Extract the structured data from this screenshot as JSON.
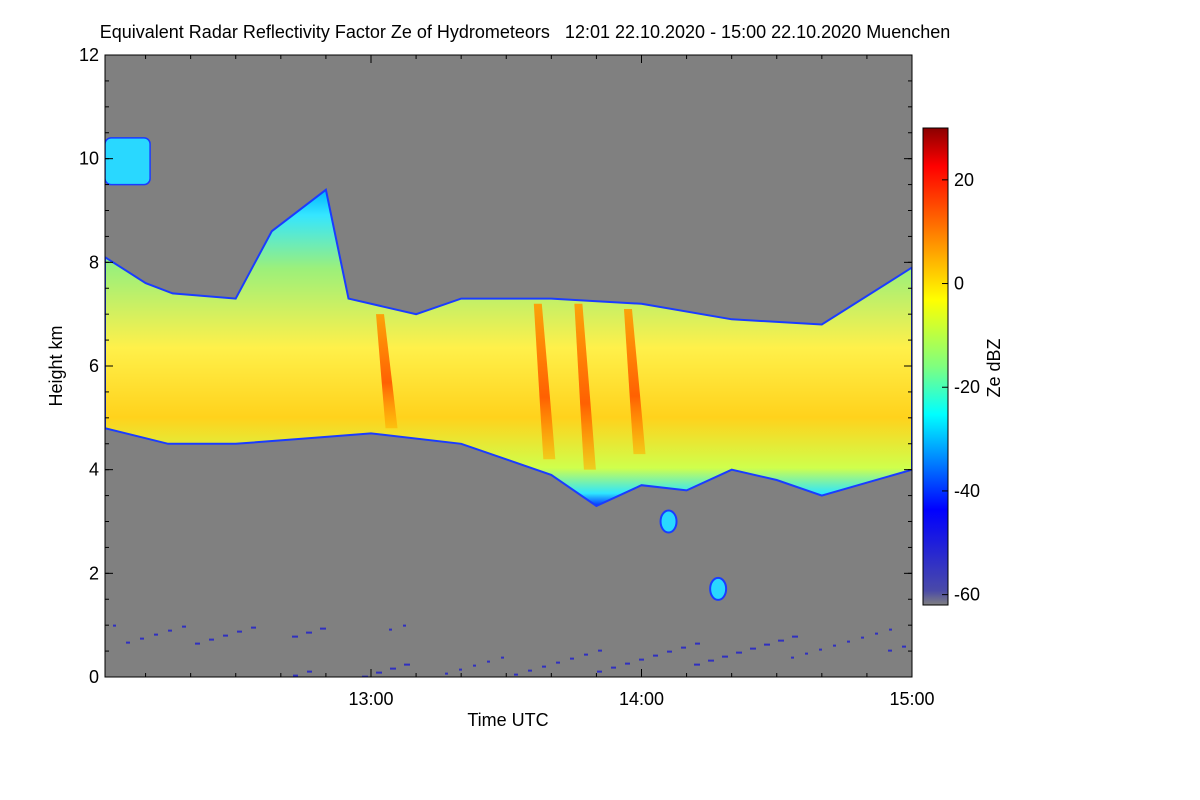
{
  "chart_data": {
    "type": "heatmap",
    "title": "Equivalent Radar Reflectivity Factor Ze of Hydrometeors   12:01 22.10.2020 - 15:00 22.10.2020 Muenchen",
    "xlabel": "Time UTC",
    "ylabel": "Height km",
    "colorbar_label": "Ze dBZ",
    "x_range": [
      "12:01",
      "15:00"
    ],
    "xlim_minutes_utc": [
      721,
      900
    ],
    "x_ticks": [
      {
        "label": "13:00",
        "minutes_utc": 780
      },
      {
        "label": "14:00",
        "minutes_utc": 840
      },
      {
        "label": "15:00",
        "minutes_utc": 900
      }
    ],
    "ylim": [
      0,
      12
    ],
    "y_ticks": [
      0,
      2,
      4,
      6,
      8,
      10,
      12
    ],
    "colorbar_range": [
      -62,
      30
    ],
    "colorbar_ticks": [
      -60,
      -40,
      -20,
      0,
      20
    ],
    "background_color": "#808080",
    "colormap": [
      "#808080",
      "#0000ff",
      "#00ffff",
      "#ffff00",
      "#ff0000",
      "#8b0000"
    ],
    "cloud_layer": {
      "description_units": "height km vs time",
      "base_km": [
        {
          "t": 721,
          "h": 4.8
        },
        {
          "t": 735,
          "h": 4.5
        },
        {
          "t": 750,
          "h": 4.5
        },
        {
          "t": 765,
          "h": 4.6
        },
        {
          "t": 780,
          "h": 4.7
        },
        {
          "t": 800,
          "h": 4.5
        },
        {
          "t": 810,
          "h": 4.2
        },
        {
          "t": 820,
          "h": 3.9
        },
        {
          "t": 830,
          "h": 3.3
        },
        {
          "t": 840,
          "h": 3.7
        },
        {
          "t": 850,
          "h": 3.6
        },
        {
          "t": 860,
          "h": 4.0
        },
        {
          "t": 870,
          "h": 3.8
        },
        {
          "t": 880,
          "h": 3.5
        },
        {
          "t": 900,
          "h": 4.0
        }
      ],
      "top_km": [
        {
          "t": 721,
          "h": 8.1
        },
        {
          "t": 730,
          "h": 7.6
        },
        {
          "t": 736,
          "h": 7.4
        },
        {
          "t": 750,
          "h": 7.3
        },
        {
          "t": 758,
          "h": 8.6
        },
        {
          "t": 770,
          "h": 9.4
        },
        {
          "t": 775,
          "h": 7.3
        },
        {
          "t": 790,
          "h": 7.0
        },
        {
          "t": 800,
          "h": 7.3
        },
        {
          "t": 820,
          "h": 7.3
        },
        {
          "t": 840,
          "h": 7.2
        },
        {
          "t": 860,
          "h": 6.9
        },
        {
          "t": 880,
          "h": 6.8
        },
        {
          "t": 900,
          "h": 7.9
        }
      ]
    },
    "features": [
      {
        "type": "cirrus",
        "t_start": 721,
        "t_end": 731,
        "h_min": 9.5,
        "h_max": 10.4
      },
      {
        "type": "fall_streak",
        "t": 782,
        "h_top": 7.0,
        "h_bottom": 4.8,
        "max_dbz": 8
      },
      {
        "type": "fall_streak",
        "t": 817,
        "h_top": 7.2,
        "h_bottom": 4.2,
        "max_dbz": 12
      },
      {
        "type": "fall_streak",
        "t": 826,
        "h_top": 7.2,
        "h_bottom": 4.0,
        "max_dbz": 10
      },
      {
        "type": "fall_streak",
        "t": 837,
        "h_top": 7.1,
        "h_bottom": 4.3,
        "max_dbz": 8
      },
      {
        "type": "isolated_echo",
        "t": 846,
        "h": 3.0
      },
      {
        "type": "isolated_echo",
        "t": 857,
        "h": 1.7
      },
      {
        "type": "ground_clutter",
        "h_max": 1.3
      }
    ]
  }
}
